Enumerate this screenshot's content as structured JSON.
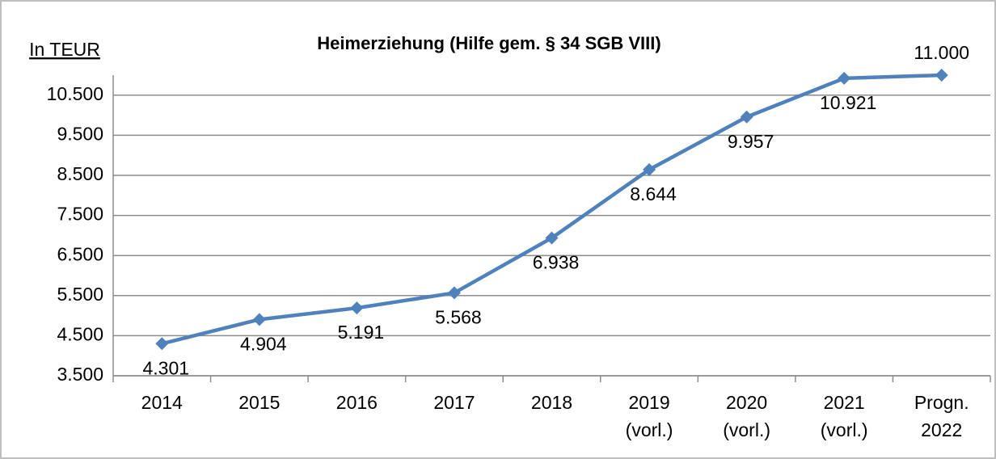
{
  "chart_data": {
    "type": "line",
    "title": "Heimerziehung (Hilfe gem. § 34 SGB VIII)",
    "y_label": "In TEUR",
    "categories": [
      "2014",
      "2015",
      "2016",
      "2017",
      "2018",
      "2019\n(vorl.)",
      "2020\n(vorl.)",
      "2021\n(vorl.)",
      "Progn.\n2022"
    ],
    "series": [
      {
        "name": "Heimerziehung",
        "color": "#4f81bd",
        "values": [
          4301,
          4904,
          5191,
          5568,
          6938,
          8644,
          9957,
          10921,
          11000
        ],
        "value_labels": [
          "4.301",
          "4.904",
          "5.191",
          "5.568",
          "6.938",
          "8.644",
          "9.957",
          "10.921",
          "11.000"
        ]
      }
    ],
    "ylim": [
      3500,
      11000
    ],
    "yticks": [
      {
        "value": 3500,
        "label": "3.500"
      },
      {
        "value": 4500,
        "label": "4.500"
      },
      {
        "value": 5500,
        "label": "5.500"
      },
      {
        "value": 6500,
        "label": "6.500"
      },
      {
        "value": 7500,
        "label": "7.500"
      },
      {
        "value": 8500,
        "label": "8.500"
      },
      {
        "value": 9500,
        "label": "9.500"
      },
      {
        "value": 10500,
        "label": "10.500"
      }
    ],
    "grid": true
  }
}
